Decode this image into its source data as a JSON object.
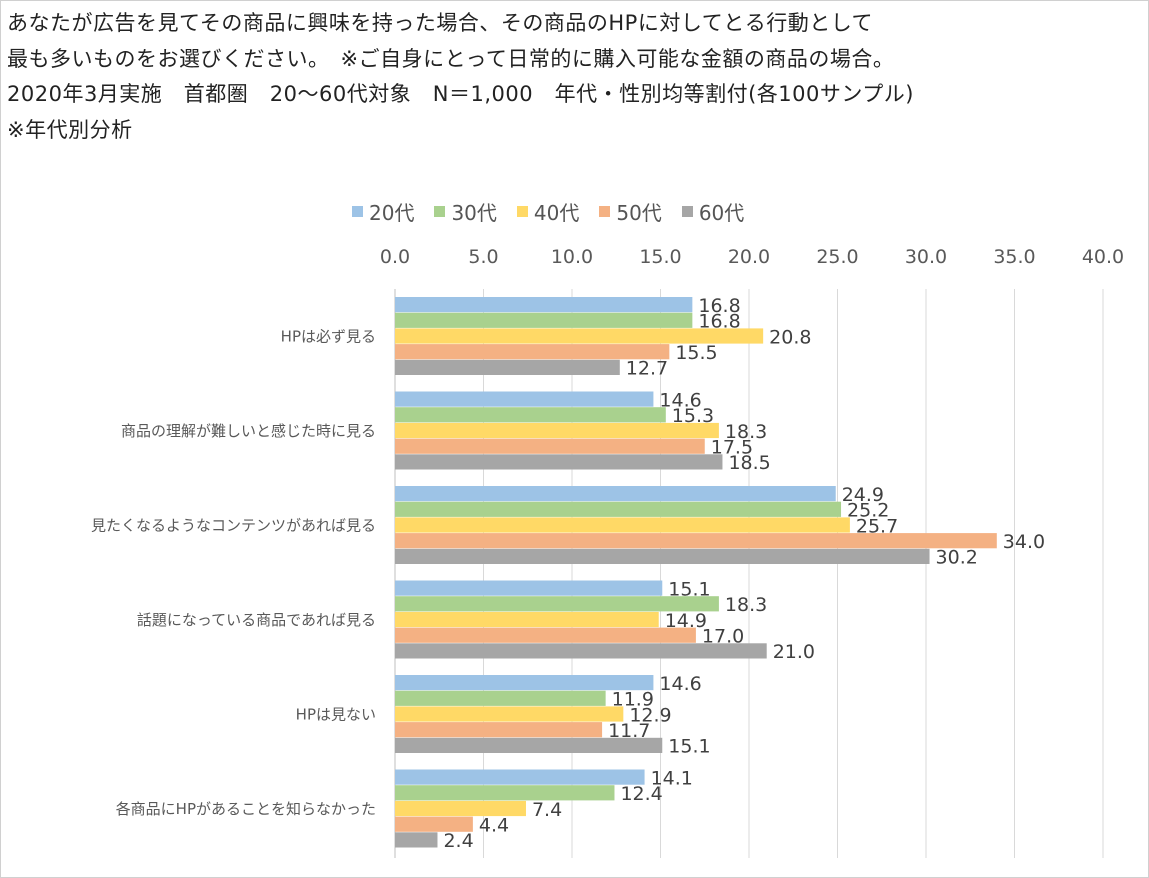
{
  "title_lines": [
    "あなたが広告を見てその商品に興味を持った場合、その商品のHPに対してとる行動として",
    "最も多いものをお選びください。　※ご自身にとって日常的に購入可能な金額の商品の場合。",
    "2020年3月実施　首都圏　20～60代対象　N＝1,000　年代・性別均等割付(各100サンプル)",
    "※年代別分析"
  ],
  "chart_data": {
    "type": "bar",
    "orientation": "horizontal",
    "title": "あなたが広告を見てその商品に興味を持った場合、その商品のHPに対してとる行動として最も多いものをお選びください。",
    "xlabel": "",
    "ylabel": "",
    "xlim": [
      0,
      40
    ],
    "x_ticks": [
      "0.0",
      "5.0",
      "10.0",
      "15.0",
      "20.0",
      "25.0",
      "30.0",
      "35.0",
      "40.0"
    ],
    "x_axis_position": "top",
    "grid": true,
    "legend_position": "top",
    "categories": [
      "HPは必ず見る",
      "商品の理解が難しいと感じた時に見る",
      "見たくなるようなコンテンツがあれば見る",
      "話題になっている商品であれば見る",
      "HPは見ない",
      "各商品にHPがあることを知らなかった"
    ],
    "series": [
      {
        "name": "20代",
        "color": "#9dc3e6",
        "values": [
          16.8,
          14.6,
          24.9,
          15.1,
          14.6,
          14.1
        ]
      },
      {
        "name": "30代",
        "color": "#a9d18e",
        "values": [
          16.8,
          15.3,
          25.2,
          18.3,
          11.9,
          12.4
        ]
      },
      {
        "name": "40代",
        "color": "#ffd966",
        "values": [
          20.8,
          18.3,
          25.7,
          14.9,
          12.9,
          7.4
        ]
      },
      {
        "name": "50代",
        "color": "#f4b183",
        "values": [
          15.5,
          17.5,
          34.0,
          17.0,
          11.7,
          4.4
        ]
      },
      {
        "name": "60代",
        "color": "#a6a6a6",
        "values": [
          12.7,
          18.5,
          30.2,
          21.0,
          15.1,
          2.4
        ]
      }
    ]
  }
}
